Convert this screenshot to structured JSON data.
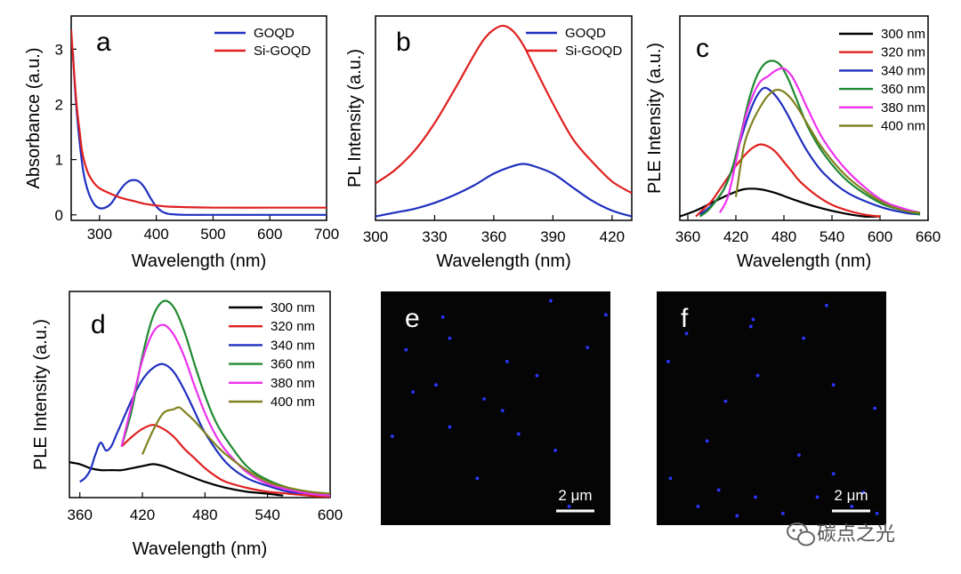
{
  "chart_data": [
    {
      "id": "a",
      "type": "line",
      "panel_label": "a",
      "xlabel": "Wavelength (nm)",
      "ylabel": "Absorbance (a.u.)",
      "xlim": [
        250,
        700
      ],
      "ylim": [
        -0.1,
        3.6
      ],
      "xticks": [
        300,
        400,
        500,
        600,
        700
      ],
      "yticks": [
        0,
        1,
        2,
        3
      ],
      "legend_position": "top-right",
      "series": [
        {
          "name": "GOQD",
          "color": "#1f2fbf",
          "x": [
            253,
            258,
            265,
            272,
            280,
            290,
            300,
            310,
            320,
            330,
            340,
            350,
            360,
            370,
            380,
            390,
            400,
            410,
            420,
            430,
            450,
            500,
            600,
            700
          ],
          "y": [
            2.95,
            2.1,
            1.3,
            0.75,
            0.42,
            0.2,
            0.12,
            0.13,
            0.2,
            0.35,
            0.5,
            0.6,
            0.63,
            0.6,
            0.48,
            0.3,
            0.15,
            0.06,
            0.02,
            0.01,
            0.0,
            0.0,
            0.0,
            0.0
          ]
        },
        {
          "name": "Si-GOQD",
          "color": "#e02020",
          "x": [
            250,
            255,
            260,
            265,
            270,
            280,
            290,
            300,
            320,
            340,
            360,
            380,
            400,
            420,
            450,
            500,
            600,
            700
          ],
          "y": [
            3.35,
            2.6,
            1.95,
            1.5,
            1.1,
            0.75,
            0.58,
            0.48,
            0.38,
            0.3,
            0.25,
            0.2,
            0.17,
            0.15,
            0.14,
            0.13,
            0.13,
            0.13
          ]
        }
      ]
    },
    {
      "id": "b",
      "type": "line",
      "panel_label": "b",
      "xlabel": "Wavelength (nm)",
      "ylabel": "PL Intensity (a.u.)",
      "xlim": [
        300,
        430
      ],
      "ylim": [
        0,
        1.05
      ],
      "xticks": [
        300,
        330,
        360,
        390,
        420
      ],
      "yticks": [],
      "legend_position": "top-right",
      "series": [
        {
          "name": "GOQD",
          "color": "#1f2fbf",
          "x": [
            300,
            310,
            320,
            330,
            340,
            350,
            360,
            370,
            375,
            380,
            390,
            400,
            410,
            420,
            430
          ],
          "y": [
            0.02,
            0.04,
            0.06,
            0.09,
            0.13,
            0.18,
            0.24,
            0.28,
            0.29,
            0.28,
            0.24,
            0.17,
            0.1,
            0.05,
            0.02
          ]
        },
        {
          "name": "Si-GOQD",
          "color": "#e02020",
          "x": [
            300,
            310,
            320,
            330,
            340,
            350,
            355,
            360,
            365,
            370,
            375,
            380,
            390,
            400,
            410,
            420,
            430
          ],
          "y": [
            0.19,
            0.26,
            0.36,
            0.5,
            0.67,
            0.85,
            0.93,
            0.98,
            1.0,
            0.97,
            0.9,
            0.8,
            0.6,
            0.42,
            0.3,
            0.2,
            0.14
          ]
        }
      ]
    },
    {
      "id": "c",
      "type": "line",
      "panel_label": "c",
      "xlabel": "Wavelength (nm)",
      "ylabel": "PLE Intensity (a.u.)",
      "xlim": [
        350,
        660
      ],
      "ylim": [
        0,
        1.05
      ],
      "xticks": [
        360,
        420,
        480,
        540,
        600,
        660
      ],
      "yticks": [],
      "legend_position": "top-right",
      "series": [
        {
          "name": "300 nm",
          "color": "#000000",
          "x": [
            350,
            370,
            390,
            410,
            430,
            450,
            470,
            490,
            520,
            550,
            580,
            600
          ],
          "y": [
            0.02,
            0.05,
            0.09,
            0.13,
            0.16,
            0.16,
            0.14,
            0.11,
            0.07,
            0.04,
            0.02,
            0.02
          ]
        },
        {
          "name": "320 nm",
          "color": "#e02020",
          "x": [
            370,
            380,
            390,
            400,
            410,
            420,
            430,
            440,
            450,
            460,
            470,
            480,
            490,
            500,
            520,
            540,
            560,
            580,
            600
          ],
          "y": [
            0.02,
            0.06,
            0.1,
            0.16,
            0.22,
            0.28,
            0.33,
            0.37,
            0.39,
            0.38,
            0.35,
            0.3,
            0.25,
            0.2,
            0.13,
            0.08,
            0.05,
            0.03,
            0.02
          ]
        },
        {
          "name": "340 nm",
          "color": "#1f2fbf",
          "x": [
            375,
            385,
            395,
            405,
            415,
            425,
            435,
            445,
            455,
            465,
            475,
            485,
            495,
            510,
            530,
            560,
            600,
            630,
            650
          ],
          "y": [
            0.03,
            0.06,
            0.1,
            0.16,
            0.26,
            0.4,
            0.53,
            0.63,
            0.68,
            0.66,
            0.61,
            0.54,
            0.46,
            0.35,
            0.24,
            0.14,
            0.07,
            0.04,
            0.03
          ]
        },
        {
          "name": "360 nm",
          "color": "#1f8a30",
          "x": [
            375,
            385,
            395,
            405,
            415,
            425,
            435,
            445,
            455,
            465,
            475,
            485,
            495,
            510,
            530,
            560,
            600,
            630,
            650
          ],
          "y": [
            0.02,
            0.05,
            0.1,
            0.16,
            0.26,
            0.42,
            0.6,
            0.73,
            0.8,
            0.82,
            0.8,
            0.73,
            0.63,
            0.48,
            0.34,
            0.2,
            0.09,
            0.05,
            0.03
          ]
        },
        {
          "name": "380 nm",
          "color": "#ee30ee",
          "x": [
            400,
            410,
            420,
            430,
            440,
            450,
            460,
            470,
            480,
            490,
            500,
            510,
            530,
            560,
            600,
            630,
            650
          ],
          "y": [
            0.04,
            0.12,
            0.3,
            0.5,
            0.63,
            0.71,
            0.74,
            0.77,
            0.78,
            0.74,
            0.66,
            0.57,
            0.41,
            0.25,
            0.11,
            0.06,
            0.04
          ]
        },
        {
          "name": "400 nm",
          "color": "#808020",
          "x": [
            420,
            430,
            440,
            450,
            460,
            470,
            480,
            490,
            500,
            510,
            530,
            560,
            600,
            630,
            650
          ],
          "y": [
            0.12,
            0.38,
            0.5,
            0.58,
            0.64,
            0.67,
            0.66,
            0.62,
            0.56,
            0.49,
            0.36,
            0.22,
            0.1,
            0.05,
            0.04
          ]
        }
      ]
    },
    {
      "id": "d",
      "type": "line",
      "panel_label": "d",
      "xlabel": "Wavelength (nm)",
      "ylabel": "PLE Intensity (a.u.)",
      "xlim": [
        350,
        600
      ],
      "ylim": [
        0,
        1.05
      ],
      "xticks": [
        360,
        420,
        480,
        540,
        600
      ],
      "yticks": [],
      "legend_position": "top-right",
      "series": [
        {
          "name": "300 nm",
          "color": "#000000",
          "x": [
            350,
            360,
            370,
            380,
            390,
            400,
            410,
            420,
            430,
            440,
            450,
            460,
            480,
            500,
            520,
            540,
            555
          ],
          "y": [
            0.18,
            0.17,
            0.15,
            0.14,
            0.14,
            0.14,
            0.15,
            0.16,
            0.17,
            0.16,
            0.14,
            0.12,
            0.08,
            0.05,
            0.03,
            0.02,
            0.01
          ]
        },
        {
          "name": "320 nm",
          "color": "#e02020",
          "x": [
            400,
            410,
            420,
            430,
            440,
            450,
            460,
            470,
            480,
            490,
            500,
            520,
            540,
            560,
            580,
            600
          ],
          "y": [
            0.26,
            0.31,
            0.35,
            0.37,
            0.35,
            0.31,
            0.25,
            0.2,
            0.15,
            0.11,
            0.08,
            0.05,
            0.03,
            0.02,
            0.01,
            0.0
          ]
        },
        {
          "name": "340 nm",
          "color": "#1f2fbf",
          "x": [
            360,
            365,
            370,
            375,
            380,
            385,
            390,
            395,
            400,
            410,
            420,
            430,
            440,
            450,
            460,
            470,
            480,
            500,
            520,
            540,
            560,
            580,
            600
          ],
          "y": [
            0.08,
            0.1,
            0.14,
            0.22,
            0.28,
            0.24,
            0.26,
            0.32,
            0.38,
            0.5,
            0.6,
            0.66,
            0.68,
            0.64,
            0.55,
            0.44,
            0.33,
            0.18,
            0.1,
            0.06,
            0.03,
            0.02,
            0.01
          ]
        },
        {
          "name": "360 nm",
          "color": "#1f8a30",
          "x": [
            400,
            410,
            420,
            430,
            440,
            450,
            460,
            470,
            480,
            490,
            500,
            520,
            540,
            560,
            580,
            600
          ],
          "y": [
            0.26,
            0.45,
            0.72,
            0.92,
            1.0,
            0.97,
            0.85,
            0.68,
            0.52,
            0.39,
            0.3,
            0.16,
            0.09,
            0.05,
            0.02,
            0.01
          ]
        },
        {
          "name": "380 nm",
          "color": "#ee30ee",
          "x": [
            400,
            410,
            420,
            430,
            440,
            450,
            460,
            470,
            480,
            490,
            500,
            520,
            540,
            560,
            580,
            600
          ],
          "y": [
            0.26,
            0.48,
            0.7,
            0.84,
            0.88,
            0.83,
            0.72,
            0.57,
            0.43,
            0.32,
            0.24,
            0.13,
            0.07,
            0.04,
            0.02,
            0.01
          ]
        },
        {
          "name": "400 nm",
          "color": "#808020",
          "x": [
            420,
            430,
            440,
            450,
            455,
            460,
            470,
            480,
            490,
            500,
            520,
            540,
            560,
            580,
            600
          ],
          "y": [
            0.22,
            0.34,
            0.43,
            0.45,
            0.46,
            0.44,
            0.39,
            0.33,
            0.27,
            0.22,
            0.14,
            0.08,
            0.05,
            0.03,
            0.02
          ]
        }
      ]
    }
  ],
  "micrographs": [
    {
      "label": "e",
      "scale_bar": "2 μm",
      "dot_color": "#2b36ff",
      "dots": [
        [
          0.74,
          0.04
        ],
        [
          0.27,
          0.11
        ],
        [
          0.98,
          0.1
        ],
        [
          0.3,
          0.2
        ],
        [
          0.11,
          0.25
        ],
        [
          0.55,
          0.3
        ],
        [
          0.9,
          0.24
        ],
        [
          0.14,
          0.43
        ],
        [
          0.45,
          0.46
        ],
        [
          0.53,
          0.51
        ],
        [
          0.3,
          0.58
        ],
        [
          0.05,
          0.62
        ],
        [
          0.6,
          0.61
        ],
        [
          0.76,
          0.68
        ],
        [
          0.42,
          0.8
        ],
        [
          0.82,
          0.92
        ],
        [
          0.24,
          0.4
        ],
        [
          0.68,
          0.36
        ]
      ]
    },
    {
      "label": "f",
      "scale_bar": "2 μm",
      "dot_color": "#2b36ff",
      "dots": [
        [
          0.42,
          0.12
        ],
        [
          0.41,
          0.15
        ],
        [
          0.13,
          0.18
        ],
        [
          0.64,
          0.2
        ],
        [
          0.74,
          0.06
        ],
        [
          0.05,
          0.3
        ],
        [
          0.3,
          0.47
        ],
        [
          0.44,
          0.36
        ],
        [
          0.77,
          0.4
        ],
        [
          0.95,
          0.5
        ],
        [
          0.22,
          0.64
        ],
        [
          0.06,
          0.8
        ],
        [
          0.27,
          0.85
        ],
        [
          0.43,
          0.88
        ],
        [
          0.62,
          0.7
        ],
        [
          0.77,
          0.78
        ],
        [
          0.9,
          0.86
        ],
        [
          0.85,
          0.92
        ],
        [
          0.96,
          0.95
        ],
        [
          0.55,
          0.95
        ],
        [
          0.35,
          0.96
        ],
        [
          0.18,
          0.92
        ],
        [
          0.7,
          0.88
        ]
      ]
    }
  ],
  "watermark": "碳点之光",
  "colors": {
    "background": "#ffffff",
    "micrograph_bg": "#050505"
  }
}
